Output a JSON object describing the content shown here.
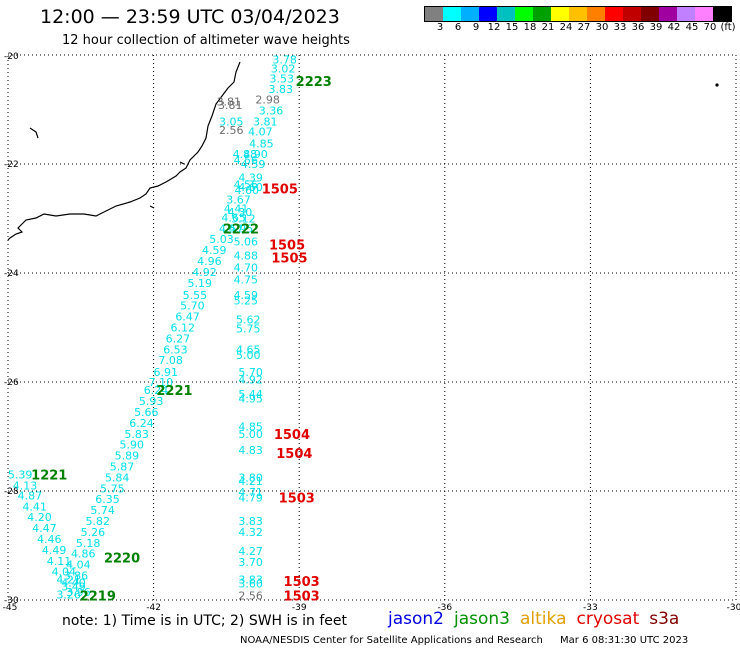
{
  "header": {
    "title": "12:00 — 23:59 UTC 03/04/2023",
    "subtitle": "12 hour collection of altimeter wave heights"
  },
  "colorbar": {
    "colors": [
      "#808080",
      "#00ffff",
      "#00b0ff",
      "#0000ff",
      "#00c0c0",
      "#00ff00",
      "#00a000",
      "#ffff00",
      "#ffc000",
      "#ff8000",
      "#ff0000",
      "#c00000",
      "#800000",
      "#a000a0",
      "#c080ff",
      "#ff80ff",
      "#000000"
    ],
    "labels": [
      "3",
      "6",
      "9",
      "12",
      "15",
      "18",
      "21",
      "24",
      "27",
      "30",
      "33",
      "36",
      "39",
      "42",
      "45",
      "70",
      "(ft)"
    ]
  },
  "map": {
    "lon_ticks": [
      {
        "v": -45,
        "label": "-45"
      },
      {
        "v": -42,
        "label": "-42"
      },
      {
        "v": -39,
        "label": "-39"
      },
      {
        "v": -36,
        "label": "-36"
      },
      {
        "v": -33,
        "label": "-33"
      },
      {
        "v": -30,
        "label": "-30"
      }
    ],
    "lat_ticks": [
      {
        "v": -20,
        "label": "-20"
      },
      {
        "v": -22,
        "label": "-22"
      },
      {
        "v": -24,
        "label": "-24"
      },
      {
        "v": -26,
        "label": "-26"
      },
      {
        "v": -28,
        "label": "-28"
      },
      {
        "v": -30,
        "label": "-30"
      }
    ],
    "colors": {
      "cyan": "#00e0e8",
      "gray": "#707070",
      "green": "#008000",
      "red": "#e00000"
    },
    "observations": [
      {
        "lon": -39.3,
        "lat": -20.08,
        "t": "3.78",
        "c": "cyan"
      },
      {
        "lon": -39.33,
        "lat": -20.25,
        "t": "3.02",
        "c": "cyan"
      },
      {
        "lon": -39.36,
        "lat": -20.43,
        "t": "3.53",
        "c": "cyan"
      },
      {
        "lon": -39.38,
        "lat": -20.62,
        "t": "3.83",
        "c": "cyan"
      },
      {
        "lon": -39.65,
        "lat": -20.82,
        "t": "2.98",
        "c": "gray"
      },
      {
        "lon": -40.45,
        "lat": -20.85,
        "t": "3.81",
        "c": "gray"
      },
      {
        "lon": -40.42,
        "lat": -20.92,
        "t": "3.81",
        "c": "gray"
      },
      {
        "lon": -39.58,
        "lat": -21.02,
        "t": "3.36",
        "c": "cyan"
      },
      {
        "lon": -40.4,
        "lat": -21.22,
        "t": "3.05",
        "c": "cyan"
      },
      {
        "lon": -39.7,
        "lat": -21.22,
        "t": "3.81",
        "c": "cyan"
      },
      {
        "lon": -40.4,
        "lat": -21.38,
        "t": "2.56",
        "c": "gray"
      },
      {
        "lon": -39.8,
        "lat": -21.4,
        "t": "4.07",
        "c": "cyan"
      },
      {
        "lon": -39.78,
        "lat": -21.62,
        "t": "4.85",
        "c": "cyan"
      },
      {
        "lon": -40.12,
        "lat": -21.82,
        "t": "4.88",
        "c": "cyan"
      },
      {
        "lon": -39.9,
        "lat": -21.82,
        "t": "4.90",
        "c": "cyan"
      },
      {
        "lon": -40.1,
        "lat": -21.93,
        "t": "4.56",
        "c": "cyan"
      },
      {
        "lon": -39.95,
        "lat": -22.0,
        "t": "4.59",
        "c": "cyan"
      },
      {
        "lon": -40.0,
        "lat": -22.25,
        "t": "4.39",
        "c": "cyan"
      },
      {
        "lon": -40.1,
        "lat": -22.38,
        "t": "4.56",
        "c": "cyan"
      },
      {
        "lon": -40.0,
        "lat": -22.42,
        "t": "4.60",
        "c": "cyan"
      },
      {
        "lon": -40.08,
        "lat": -22.48,
        "t": "4.60",
        "c": "cyan"
      },
      {
        "lon": -40.25,
        "lat": -22.65,
        "t": "3.67",
        "c": "cyan"
      },
      {
        "lon": -40.3,
        "lat": -22.82,
        "t": "4.41",
        "c": "cyan"
      },
      {
        "lon": -40.22,
        "lat": -22.88,
        "t": "4.30",
        "c": "cyan"
      },
      {
        "lon": -40.35,
        "lat": -22.98,
        "t": "4.65",
        "c": "cyan"
      },
      {
        "lon": -40.15,
        "lat": -23.0,
        "t": "5.12",
        "c": "cyan"
      },
      {
        "lon": -40.4,
        "lat": -23.18,
        "t": "4.57",
        "c": "cyan"
      },
      {
        "lon": -40.2,
        "lat": -23.18,
        "t": "4.95",
        "c": "cyan"
      },
      {
        "lon": -40.6,
        "lat": -23.38,
        "t": "5.03",
        "c": "cyan"
      },
      {
        "lon": -40.1,
        "lat": -23.42,
        "t": "5.06",
        "c": "cyan"
      },
      {
        "lon": -40.75,
        "lat": -23.58,
        "t": "4.59",
        "c": "cyan"
      },
      {
        "lon": -40.1,
        "lat": -23.68,
        "t": "4.88",
        "c": "cyan"
      },
      {
        "lon": -40.85,
        "lat": -23.78,
        "t": "4.96",
        "c": "cyan"
      },
      {
        "lon": -40.1,
        "lat": -23.9,
        "t": "4.70",
        "c": "cyan"
      },
      {
        "lon": -40.95,
        "lat": -23.98,
        "t": "4.92",
        "c": "cyan"
      },
      {
        "lon": -40.1,
        "lat": -24.12,
        "t": "4.75",
        "c": "cyan"
      },
      {
        "lon": -41.05,
        "lat": -24.18,
        "t": "5.19",
        "c": "cyan"
      },
      {
        "lon": -41.15,
        "lat": -24.4,
        "t": "5.55",
        "c": "cyan"
      },
      {
        "lon": -40.1,
        "lat": -24.4,
        "t": "4.59",
        "c": "cyan"
      },
      {
        "lon": -40.1,
        "lat": -24.5,
        "t": "5.25",
        "c": "cyan"
      },
      {
        "lon": -41.2,
        "lat": -24.6,
        "t": "5.70",
        "c": "cyan"
      },
      {
        "lon": -41.3,
        "lat": -24.8,
        "t": "6.47",
        "c": "cyan"
      },
      {
        "lon": -40.05,
        "lat": -24.85,
        "t": "5.62",
        "c": "cyan"
      },
      {
        "lon": -41.4,
        "lat": -25.0,
        "t": "6.12",
        "c": "cyan"
      },
      {
        "lon": -40.05,
        "lat": -25.02,
        "t": "5.75",
        "c": "cyan"
      },
      {
        "lon": -41.5,
        "lat": -25.2,
        "t": "6.27",
        "c": "cyan"
      },
      {
        "lon": -41.55,
        "lat": -25.4,
        "t": "6.53",
        "c": "cyan"
      },
      {
        "lon": -40.05,
        "lat": -25.4,
        "t": "4.65",
        "c": "cyan"
      },
      {
        "lon": -40.05,
        "lat": -25.5,
        "t": "5.00",
        "c": "cyan"
      },
      {
        "lon": -41.65,
        "lat": -25.6,
        "t": "7.08",
        "c": "cyan"
      },
      {
        "lon": -41.75,
        "lat": -25.82,
        "t": "6.91",
        "c": "cyan"
      },
      {
        "lon": -40.0,
        "lat": -25.82,
        "t": "5.70",
        "c": "cyan"
      },
      {
        "lon": -40.0,
        "lat": -25.95,
        "t": "4.92",
        "c": "cyan"
      },
      {
        "lon": -41.85,
        "lat": -26.0,
        "t": "7.10",
        "c": "cyan"
      },
      {
        "lon": -41.95,
        "lat": -26.15,
        "t": "6.24",
        "c": "cyan"
      },
      {
        "lon": -40.0,
        "lat": -26.22,
        "t": "5.44",
        "c": "cyan"
      },
      {
        "lon": -40.0,
        "lat": -26.3,
        "t": "4.95",
        "c": "cyan"
      },
      {
        "lon": -42.05,
        "lat": -26.35,
        "t": "5.93",
        "c": "cyan"
      },
      {
        "lon": -42.15,
        "lat": -26.55,
        "t": "5.66",
        "c": "cyan"
      },
      {
        "lon": -42.25,
        "lat": -26.75,
        "t": "6.24",
        "c": "cyan"
      },
      {
        "lon": -40.0,
        "lat": -26.82,
        "t": "4.85",
        "c": "cyan"
      },
      {
        "lon": -42.35,
        "lat": -26.95,
        "t": "5.83",
        "c": "cyan"
      },
      {
        "lon": -40.0,
        "lat": -26.95,
        "t": "5.00",
        "c": "cyan"
      },
      {
        "lon": -42.45,
        "lat": -27.15,
        "t": "5.90",
        "c": "cyan"
      },
      {
        "lon": -42.55,
        "lat": -27.35,
        "t": "5.89",
        "c": "cyan"
      },
      {
        "lon": -40.0,
        "lat": -27.25,
        "t": "4.83",
        "c": "cyan"
      },
      {
        "lon": -42.65,
        "lat": -27.55,
        "t": "5.87",
        "c": "cyan"
      },
      {
        "lon": -42.75,
        "lat": -27.75,
        "t": "5.84",
        "c": "cyan"
      },
      {
        "lon": -40.0,
        "lat": -27.75,
        "t": "3.80",
        "c": "cyan"
      },
      {
        "lon": -40.0,
        "lat": -27.82,
        "t": "4.21",
        "c": "cyan"
      },
      {
        "lon": -42.85,
        "lat": -27.95,
        "t": "5.75",
        "c": "cyan"
      },
      {
        "lon": -40.0,
        "lat": -28.02,
        "t": "4.71",
        "c": "cyan"
      },
      {
        "lon": -40.0,
        "lat": -28.12,
        "t": "4.79",
        "c": "cyan"
      },
      {
        "lon": -42.95,
        "lat": -28.15,
        "t": "6.35",
        "c": "cyan"
      },
      {
        "lon": -43.05,
        "lat": -28.35,
        "t": "5.74",
        "c": "cyan"
      },
      {
        "lon": -43.15,
        "lat": -28.55,
        "t": "5.82",
        "c": "cyan"
      },
      {
        "lon": -40.0,
        "lat": -28.55,
        "t": "3.83",
        "c": "cyan"
      },
      {
        "lon": -43.25,
        "lat": -28.75,
        "t": "5.26",
        "c": "cyan"
      },
      {
        "lon": -40.0,
        "lat": -28.75,
        "t": "4.32",
        "c": "cyan"
      },
      {
        "lon": -43.35,
        "lat": -28.95,
        "t": "5.18",
        "c": "cyan"
      },
      {
        "lon": -43.45,
        "lat": -29.15,
        "t": "4.86",
        "c": "cyan"
      },
      {
        "lon": -40.0,
        "lat": -29.1,
        "t": "4.27",
        "c": "cyan"
      },
      {
        "lon": -43.55,
        "lat": -29.35,
        "t": "4.04",
        "c": "cyan"
      },
      {
        "lon": -40.0,
        "lat": -29.3,
        "t": "3.70",
        "c": "cyan"
      },
      {
        "lon": -43.6,
        "lat": -29.55,
        "t": "3.86",
        "c": "cyan"
      },
      {
        "lon": -40.0,
        "lat": -29.62,
        "t": "3.83",
        "c": "cyan"
      },
      {
        "lon": -40.0,
        "lat": -29.7,
        "t": "3.60",
        "c": "cyan"
      },
      {
        "lon": -43.65,
        "lat": -29.75,
        "t": "3.49",
        "c": "cyan"
      },
      {
        "lon": -43.75,
        "lat": -29.9,
        "t": "3.26",
        "c": "cyan"
      },
      {
        "lon": -40.0,
        "lat": -29.92,
        "t": "2.56",
        "c": "gray"
      },
      {
        "lon": -44.75,
        "lat": -27.7,
        "t": "5.39",
        "c": "cyan"
      },
      {
        "lon": -44.65,
        "lat": -27.9,
        "t": "4.13",
        "c": "cyan"
      },
      {
        "lon": -44.55,
        "lat": -28.08,
        "t": "4.87",
        "c": "cyan"
      },
      {
        "lon": -44.45,
        "lat": -28.28,
        "t": "4.41",
        "c": "cyan"
      },
      {
        "lon": -44.35,
        "lat": -28.48,
        "t": "4.20",
        "c": "cyan"
      },
      {
        "lon": -44.25,
        "lat": -28.68,
        "t": "4.47",
        "c": "cyan"
      },
      {
        "lon": -44.15,
        "lat": -28.88,
        "t": "4.46",
        "c": "cyan"
      },
      {
        "lon": -44.05,
        "lat": -29.08,
        "t": "4.49",
        "c": "cyan"
      },
      {
        "lon": -43.95,
        "lat": -29.28,
        "t": "4.11",
        "c": "cyan"
      },
      {
        "lon": -43.85,
        "lat": -29.48,
        "t": "4.04",
        "c": "cyan"
      },
      {
        "lon": -43.75,
        "lat": -29.62,
        "t": "4.21",
        "c": "cyan"
      },
      {
        "lon": -43.65,
        "lat": -29.68,
        "t": "4.40",
        "c": "cyan"
      },
      {
        "lon": -43.55,
        "lat": -29.85,
        "t": "3.96",
        "c": "cyan"
      }
    ],
    "pass_labels": [
      {
        "lon": -38.7,
        "lat": -20.48,
        "t": "2223",
        "c": "green"
      },
      {
        "lon": -39.4,
        "lat": -22.45,
        "t": "1505",
        "c": "red"
      },
      {
        "lon": -40.2,
        "lat": -23.18,
        "t": "2222",
        "c": "green"
      },
      {
        "lon": -39.25,
        "lat": -23.48,
        "t": "1505",
        "c": "red"
      },
      {
        "lon": -39.2,
        "lat": -23.72,
        "t": "1505",
        "c": "red"
      },
      {
        "lon": -41.57,
        "lat": -26.15,
        "t": "2221",
        "c": "green"
      },
      {
        "lon": -39.15,
        "lat": -26.95,
        "t": "1504",
        "c": "red"
      },
      {
        "lon": -39.1,
        "lat": -27.3,
        "t": "1504",
        "c": "red"
      },
      {
        "lon": -44.15,
        "lat": -27.7,
        "t": "1221",
        "c": "green"
      },
      {
        "lon": -39.05,
        "lat": -28.12,
        "t": "1503",
        "c": "red"
      },
      {
        "lon": -42.65,
        "lat": -29.22,
        "t": "2220",
        "c": "green"
      },
      {
        "lon": -38.95,
        "lat": -29.65,
        "t": "1503",
        "c": "red"
      },
      {
        "lon": -38.95,
        "lat": -29.92,
        "t": "1503",
        "c": "red"
      },
      {
        "lon": -43.15,
        "lat": -29.92,
        "t": "2219",
        "c": "green"
      }
    ]
  },
  "footer": {
    "note": "note:  1) Time is in UTC;  2) SWH is in feet",
    "missions": [
      {
        "label": "jason2",
        "color": "#0000e0"
      },
      {
        "label": "jason3",
        "color": "#009000"
      },
      {
        "label": "altika",
        "color": "#e0a000"
      },
      {
        "label": "cryosat",
        "color": "#e00000"
      },
      {
        "label": "s3a",
        "color": "#800000"
      }
    ],
    "credit": "NOAA/NESDIS Center for Satellite Applications and Research",
    "timestamp": "Mar  6 08:31:30 UTC 2023"
  }
}
